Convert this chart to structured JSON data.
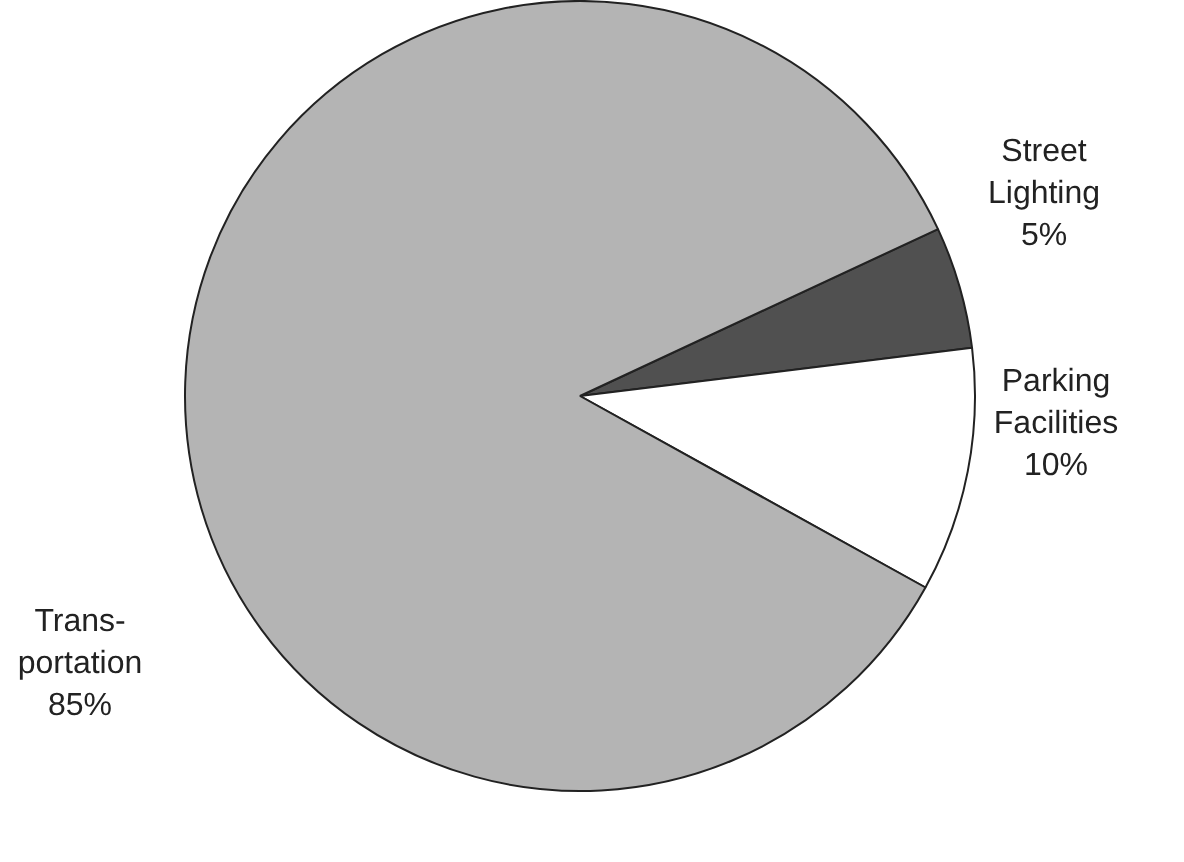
{
  "chart_data": {
    "type": "pie",
    "categories": [
      "Street Lighting",
      "Parking Facilities",
      "Trans- portation"
    ],
    "values": [
      5,
      10,
      85
    ],
    "colors": [
      "#505050",
      "#ffffff",
      "#b4b4b4"
    ],
    "value_labels": [
      "5%",
      "10%",
      "85%"
    ],
    "legend": false
  }
}
